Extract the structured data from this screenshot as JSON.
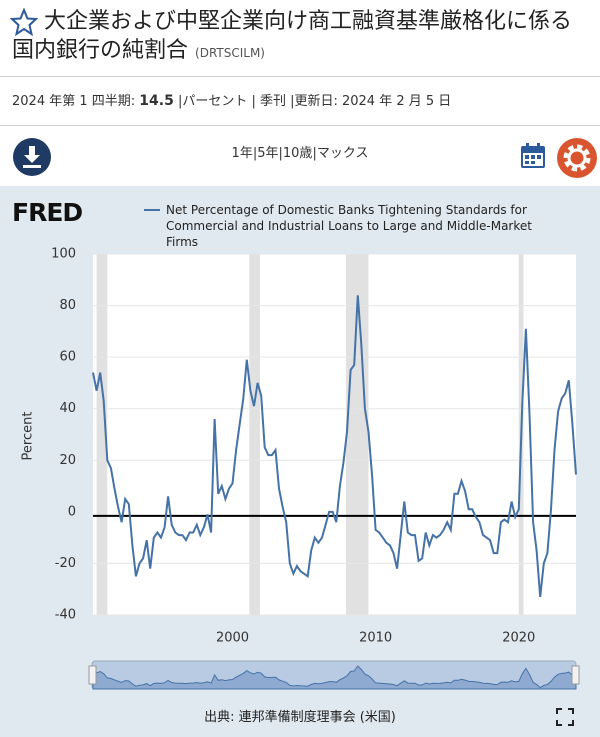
{
  "header": {
    "title": "大企業および中堅企業向け商工融資基準厳格化に係る国内銀行の純割合",
    "series_id": "(DRTSCILM)"
  },
  "info": {
    "period": "2024 年第 1 四半期: ",
    "latest_value": 14.5,
    "details": " |パーセント | 季刊 |更新日: 2024 年 2 月 5 日"
  },
  "range_buttons": [
    "1年",
    "5年",
    "10歳",
    "マックス"
  ],
  "logo": "FRED",
  "source": "出典: 連邦準備制度理事会 (米国)",
  "chart_data": {
    "type": "line",
    "y_label": "Percent",
    "grid": true,
    "xlim": [
      1990.25,
      2024
    ],
    "xticks": [
      2000,
      2010,
      2020
    ],
    "ylim": [
      -40,
      100
    ],
    "yticks": [
      100,
      80,
      60,
      40,
      20,
      0,
      -20,
      -40
    ],
    "shaded_periods": [
      [
        1990.5,
        1991.25
      ],
      [
        2001.17,
        2001.92
      ],
      [
        2007.92,
        2009.5
      ],
      [
        2020,
        2020.33
      ]
    ],
    "x": [
      1990.25,
      1990.5,
      1990.75,
      1991,
      1991.25,
      1991.5,
      1991.75,
      1992,
      1992.25,
      1992.5,
      1992.75,
      1993,
      1993.25,
      1993.5,
      1993.75,
      1994,
      1994.25,
      1994.5,
      1994.75,
      1995,
      1995.25,
      1995.5,
      1995.75,
      1996,
      1996.25,
      1996.5,
      1996.75,
      1997,
      1997.25,
      1997.5,
      1997.75,
      1998,
      1998.25,
      1998.5,
      1998.75,
      1999,
      1999.25,
      1999.5,
      1999.75,
      2000,
      2000.25,
      2000.5,
      2000.75,
      2001,
      2001.25,
      2001.5,
      2001.75,
      2002,
      2002.25,
      2002.5,
      2002.75,
      2003,
      2003.25,
      2003.5,
      2003.75,
      2004,
      2004.25,
      2004.5,
      2004.75,
      2005,
      2005.25,
      2005.5,
      2005.75,
      2006,
      2006.25,
      2006.5,
      2006.75,
      2007,
      2007.25,
      2007.5,
      2007.75,
      2008,
      2008.25,
      2008.5,
      2008.75,
      2009,
      2009.25,
      2009.5,
      2009.75,
      2010,
      2010.25,
      2010.5,
      2010.75,
      2011,
      2011.25,
      2011.5,
      2011.75,
      2012,
      2012.25,
      2012.5,
      2012.75,
      2013,
      2013.25,
      2013.5,
      2013.75,
      2014,
      2014.25,
      2014.5,
      2014.75,
      2015,
      2015.25,
      2015.5,
      2015.75,
      2016,
      2016.25,
      2016.5,
      2016.75,
      2017,
      2017.25,
      2017.5,
      2017.75,
      2018,
      2018.25,
      2018.5,
      2018.75,
      2019,
      2019.25,
      2019.5,
      2019.75,
      2020,
      2020.25,
      2020.5,
      2020.75,
      2021,
      2021.25,
      2021.5,
      2021.75,
      2022,
      2022.25,
      2022.5,
      2022.75,
      2023,
      2023.25,
      2023.5,
      2023.75,
      2024
    ],
    "series": [
      {
        "name": "Net Percentage of Domestic Banks Tightening Standards for Commercial and Industrial Loans to Large and Middle-Market Firms",
        "color": "#4572a7",
        "values": [
          54,
          47,
          54,
          43,
          20,
          17,
          9,
          2,
          -4,
          5,
          3,
          -13,
          -25,
          -20,
          -18,
          -11,
          -22,
          -10,
          -8,
          -10,
          -6,
          6,
          -5,
          -8,
          -9,
          -9,
          -11,
          -8,
          -8,
          -5,
          -9,
          -6,
          -1,
          -8,
          36,
          7,
          10,
          5,
          9,
          11,
          24,
          34,
          44,
          59,
          47,
          41,
          50,
          45,
          25,
          22,
          22,
          24,
          9,
          2,
          -4,
          -20,
          -24,
          -21,
          -23,
          -24,
          -25,
          -15,
          -10,
          -12,
          -10,
          -5,
          0,
          0,
          -4,
          10,
          19,
          31,
          55,
          57,
          84,
          65,
          40,
          31,
          14,
          -7,
          -8,
          -10,
          -12,
          -13,
          -16,
          -22,
          -9,
          4,
          -8,
          -9,
          -9,
          -19,
          -18,
          -8,
          -13,
          -9,
          -10,
          -9,
          -7,
          -4,
          -7,
          7,
          7,
          12,
          8,
          1,
          1,
          -2,
          -4,
          -9,
          -10,
          -11,
          -16,
          -16,
          -4,
          -3,
          -4,
          4,
          -2,
          1,
          42,
          71,
          38,
          -4,
          -15,
          -33,
          -20,
          -16,
          1,
          24,
          39,
          44,
          46,
          51,
          34,
          14.5
        ]
      }
    ]
  }
}
